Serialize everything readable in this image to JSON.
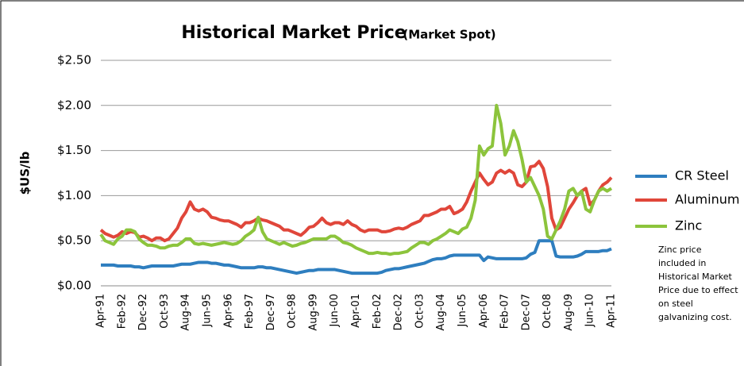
{
  "chart_data": {
    "type": "line",
    "title": "Historical Market Price",
    "subtitle": "(Market Spot)",
    "y_label": "$US/lb",
    "annotation": "Zinc price included in Historical Market Price due to effect on steel galvanizing cost.",
    "categories": [
      "Apr-91",
      null,
      null,
      null,
      null,
      "Feb-92",
      null,
      null,
      null,
      null,
      "Dec-92",
      null,
      null,
      null,
      null,
      "Oct-93",
      null,
      null,
      null,
      null,
      "Aug-94",
      null,
      null,
      null,
      null,
      "Jun-95",
      null,
      null,
      null,
      null,
      "Apr-96",
      null,
      null,
      null,
      null,
      "Feb-97",
      null,
      null,
      null,
      null,
      "Dec-97",
      null,
      null,
      null,
      null,
      "Oct-98",
      null,
      null,
      null,
      null,
      "Aug-99",
      null,
      null,
      null,
      null,
      "Jun-00",
      null,
      null,
      null,
      null,
      "Apr-01",
      null,
      null,
      null,
      null,
      "Feb-02",
      null,
      null,
      null,
      null,
      "Dec-02",
      null,
      null,
      null,
      null,
      "Oct-03",
      null,
      null,
      null,
      null,
      "Aug-04",
      null,
      null,
      null,
      null,
      "Jun-05",
      null,
      null,
      null,
      null,
      "Apr-06",
      null,
      null,
      null,
      null,
      "Feb-07",
      null,
      null,
      null,
      null,
      "Dec-07",
      null,
      null,
      null,
      null,
      "Oct-08",
      null,
      null,
      null,
      null,
      "Aug-09",
      null,
      null,
      null,
      null,
      "Jun-10",
      null,
      null,
      null,
      null,
      "Apr-11"
    ],
    "series": [
      {
        "name": "CR Steel",
        "color": "#2e7ebf",
        "values": [
          0.23,
          0.23,
          0.23,
          0.23,
          0.22,
          0.22,
          0.22,
          0.22,
          0.21,
          0.21,
          0.2,
          0.21,
          0.22,
          0.22,
          0.22,
          0.22,
          0.22,
          0.22,
          0.23,
          0.24,
          0.24,
          0.24,
          0.25,
          0.26,
          0.26,
          0.26,
          0.25,
          0.25,
          0.24,
          0.23,
          0.23,
          0.22,
          0.21,
          0.2,
          0.2,
          0.2,
          0.2,
          0.21,
          0.21,
          0.2,
          0.2,
          0.19,
          0.18,
          0.17,
          0.16,
          0.15,
          0.14,
          0.15,
          0.16,
          0.17,
          0.17,
          0.18,
          0.18,
          0.18,
          0.18,
          0.18,
          0.17,
          0.16,
          0.15,
          0.14,
          0.14,
          0.14,
          0.14,
          0.14,
          0.14,
          0.14,
          0.15,
          0.17,
          0.18,
          0.19,
          0.19,
          0.2,
          0.21,
          0.22,
          0.23,
          0.24,
          0.25,
          0.27,
          0.29,
          0.3,
          0.3,
          0.31,
          0.33,
          0.34,
          0.34,
          0.34,
          0.34,
          0.34,
          0.34,
          0.34,
          0.28,
          0.32,
          0.31,
          0.3,
          0.3,
          0.3,
          0.3,
          0.3,
          0.3,
          0.3,
          0.31,
          0.35,
          0.37,
          0.5,
          0.5,
          0.5,
          0.5,
          0.33,
          0.32,
          0.32,
          0.32,
          0.32,
          0.33,
          0.35,
          0.38,
          0.38,
          0.38,
          0.38,
          0.39,
          0.39,
          0.41
        ]
      },
      {
        "name": "Aluminum",
        "color": "#e0463a",
        "values": [
          0.62,
          0.58,
          0.56,
          0.54,
          0.56,
          0.6,
          0.58,
          0.6,
          0.59,
          0.54,
          0.55,
          0.53,
          0.5,
          0.53,
          0.53,
          0.5,
          0.52,
          0.58,
          0.64,
          0.75,
          0.82,
          0.93,
          0.85,
          0.83,
          0.85,
          0.82,
          0.76,
          0.75,
          0.73,
          0.72,
          0.72,
          0.7,
          0.68,
          0.65,
          0.7,
          0.7,
          0.72,
          0.75,
          0.73,
          0.72,
          0.7,
          0.68,
          0.66,
          0.62,
          0.62,
          0.6,
          0.58,
          0.56,
          0.6,
          0.65,
          0.66,
          0.7,
          0.75,
          0.7,
          0.68,
          0.7,
          0.7,
          0.68,
          0.72,
          0.68,
          0.66,
          0.62,
          0.6,
          0.62,
          0.62,
          0.62,
          0.6,
          0.6,
          0.61,
          0.63,
          0.64,
          0.63,
          0.65,
          0.68,
          0.7,
          0.72,
          0.78,
          0.78,
          0.8,
          0.82,
          0.85,
          0.85,
          0.88,
          0.8,
          0.82,
          0.85,
          0.93,
          1.05,
          1.15,
          1.25,
          1.18,
          1.12,
          1.15,
          1.25,
          1.28,
          1.25,
          1.28,
          1.25,
          1.12,
          1.1,
          1.15,
          1.32,
          1.33,
          1.38,
          1.3,
          1.1,
          0.75,
          0.62,
          0.65,
          0.75,
          0.85,
          0.92,
          1.0,
          1.05,
          1.08,
          0.9,
          0.95,
          1.05,
          1.12,
          1.15,
          1.2
        ]
      },
      {
        "name": "Zinc",
        "color": "#8cc43c",
        "values": [
          0.57,
          0.5,
          0.48,
          0.46,
          0.52,
          0.55,
          0.62,
          0.62,
          0.6,
          0.52,
          0.48,
          0.45,
          0.45,
          0.44,
          0.42,
          0.42,
          0.44,
          0.45,
          0.45,
          0.48,
          0.52,
          0.52,
          0.47,
          0.46,
          0.47,
          0.46,
          0.45,
          0.46,
          0.47,
          0.48,
          0.47,
          0.46,
          0.47,
          0.5,
          0.55,
          0.58,
          0.62,
          0.76,
          0.6,
          0.52,
          0.5,
          0.48,
          0.46,
          0.48,
          0.46,
          0.44,
          0.45,
          0.47,
          0.48,
          0.5,
          0.52,
          0.52,
          0.52,
          0.52,
          0.55,
          0.55,
          0.52,
          0.48,
          0.47,
          0.45,
          0.42,
          0.4,
          0.38,
          0.36,
          0.36,
          0.37,
          0.36,
          0.36,
          0.35,
          0.36,
          0.36,
          0.37,
          0.38,
          0.42,
          0.45,
          0.48,
          0.48,
          0.46,
          0.5,
          0.52,
          0.55,
          0.58,
          0.62,
          0.6,
          0.58,
          0.63,
          0.65,
          0.75,
          0.95,
          1.55,
          1.45,
          1.52,
          1.55,
          2.0,
          1.8,
          1.45,
          1.55,
          1.72,
          1.6,
          1.4,
          1.15,
          1.2,
          1.1,
          1.0,
          0.85,
          0.55,
          0.52,
          0.62,
          0.72,
          0.85,
          1.05,
          1.08,
          1.0,
          1.05,
          0.85,
          0.82,
          0.95,
          1.05,
          1.08,
          1.05,
          1.08
        ]
      }
    ],
    "ylim": [
      0,
      2.5
    ],
    "yticks": [
      {
        "value": 0,
        "label": "$0.00"
      },
      {
        "value": 0.5,
        "label": "$0.50"
      },
      {
        "value": 1,
        "label": "$1.00"
      },
      {
        "value": 1.5,
        "label": "$1.50"
      },
      {
        "value": 2,
        "label": "$2.00"
      },
      {
        "value": 2.5,
        "label": "$2.50"
      }
    ],
    "grid": true,
    "legend": "right"
  }
}
